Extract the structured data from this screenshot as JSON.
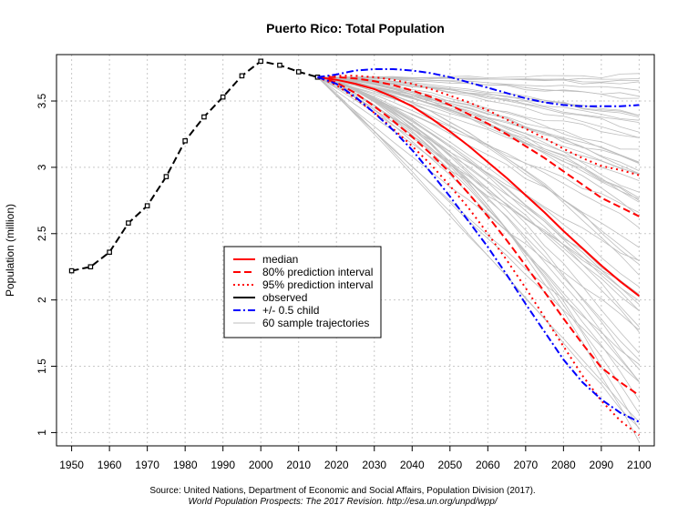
{
  "chart_data": {
    "type": "line",
    "title": "Puerto Rico: Total Population",
    "ylabel": "Population (million)",
    "xlabel": "",
    "xlim": [
      1946,
      2104
    ],
    "ylim": [
      0.9,
      3.85
    ],
    "x_ticks": [
      1950,
      1960,
      1970,
      1980,
      1990,
      2000,
      2010,
      2020,
      2030,
      2040,
      2050,
      2060,
      2070,
      2080,
      2090,
      2100
    ],
    "y_ticks": [
      1,
      1.5,
      2,
      2.5,
      3,
      3.5
    ],
    "y_tick_labels": [
      "1",
      "1.5",
      "2",
      "2.5",
      "3",
      "3.5"
    ],
    "grid": true,
    "legend_position": "center-left",
    "legend": [
      {
        "label": "median",
        "color": "#ff0000",
        "dash": "solid",
        "width": 2
      },
      {
        "label": "80% prediction interval",
        "color": "#ff0000",
        "dash": "dashed",
        "width": 2
      },
      {
        "label": "95% prediction interval",
        "color": "#ff0000",
        "dash": "dotted",
        "width": 2
      },
      {
        "label": "observed",
        "color": "#000000",
        "dash": "solid",
        "width": 2
      },
      {
        "label": "+/- 0.5 child",
        "color": "#0000ff",
        "dash": "dashdot",
        "width": 2
      },
      {
        "label": "60 sample trajectories",
        "color": "#bebebe",
        "dash": "solid",
        "width": 1
      }
    ],
    "series": [
      {
        "name": "observed",
        "color": "#000000",
        "dash": "dashed",
        "width": 2,
        "markers": true,
        "x": [
          1950,
          1955,
          1960,
          1965,
          1970,
          1975,
          1980,
          1985,
          1990,
          1995,
          2000,
          2005,
          2010,
          2015
        ],
        "y": [
          2.22,
          2.25,
          2.36,
          2.58,
          2.71,
          2.93,
          3.2,
          3.38,
          3.53,
          3.69,
          3.8,
          3.77,
          3.72,
          3.68
        ]
      },
      {
        "name": "median",
        "color": "#ff0000",
        "dash": "solid",
        "width": 2,
        "x": [
          2015,
          2020,
          2025,
          2030,
          2035,
          2040,
          2045,
          2050,
          2055,
          2060,
          2065,
          2070,
          2075,
          2080,
          2085,
          2090,
          2095,
          2100
        ],
        "y": [
          3.68,
          3.66,
          3.63,
          3.59,
          3.53,
          3.46,
          3.37,
          3.27,
          3.16,
          3.04,
          2.92,
          2.79,
          2.66,
          2.52,
          2.39,
          2.26,
          2.14,
          2.03
        ]
      },
      {
        "name": "80% upper",
        "color": "#ff0000",
        "dash": "dashed",
        "width": 2,
        "x": [
          2015,
          2020,
          2025,
          2030,
          2035,
          2040,
          2045,
          2050,
          2055,
          2060,
          2065,
          2070,
          2075,
          2080,
          2085,
          2090,
          2095,
          2100
        ],
        "y": [
          3.68,
          3.68,
          3.67,
          3.65,
          3.62,
          3.58,
          3.53,
          3.47,
          3.4,
          3.33,
          3.25,
          3.16,
          3.07,
          2.97,
          2.87,
          2.77,
          2.7,
          2.63
        ]
      },
      {
        "name": "80% lower",
        "color": "#ff0000",
        "dash": "dashed",
        "width": 2,
        "x": [
          2015,
          2020,
          2025,
          2030,
          2035,
          2040,
          2045,
          2050,
          2055,
          2060,
          2065,
          2070,
          2075,
          2080,
          2085,
          2090,
          2095,
          2100
        ],
        "y": [
          3.68,
          3.64,
          3.56,
          3.46,
          3.35,
          3.23,
          3.1,
          2.96,
          2.8,
          2.63,
          2.45,
          2.26,
          2.06,
          1.86,
          1.67,
          1.49,
          1.38,
          1.28
        ]
      },
      {
        "name": "95% upper",
        "color": "#ff0000",
        "dash": "dotted",
        "width": 2,
        "x": [
          2015,
          2020,
          2025,
          2030,
          2035,
          2040,
          2045,
          2050,
          2055,
          2060,
          2065,
          2070,
          2075,
          2080,
          2085,
          2090,
          2095,
          2100
        ],
        "y": [
          3.68,
          3.69,
          3.69,
          3.68,
          3.66,
          3.63,
          3.59,
          3.54,
          3.49,
          3.43,
          3.36,
          3.29,
          3.22,
          3.14,
          3.07,
          3.01,
          2.98,
          2.94
        ]
      },
      {
        "name": "95% lower",
        "color": "#ff0000",
        "dash": "dotted",
        "width": 2,
        "x": [
          2015,
          2020,
          2025,
          2030,
          2035,
          2040,
          2045,
          2050,
          2055,
          2060,
          2065,
          2070,
          2075,
          2080,
          2085,
          2090,
          2095,
          2100
        ],
        "y": [
          3.68,
          3.62,
          3.52,
          3.41,
          3.29,
          3.16,
          3.02,
          2.86,
          2.69,
          2.5,
          2.3,
          2.09,
          1.87,
          1.65,
          1.43,
          1.24,
          1.09,
          0.98
        ]
      },
      {
        "name": "+0.5 child",
        "color": "#0000ff",
        "dash": "dashdot",
        "width": 2,
        "x": [
          2015,
          2020,
          2025,
          2030,
          2035,
          2040,
          2045,
          2050,
          2055,
          2060,
          2065,
          2070,
          2075,
          2080,
          2085,
          2090,
          2095,
          2100
        ],
        "y": [
          3.68,
          3.7,
          3.73,
          3.74,
          3.74,
          3.73,
          3.71,
          3.68,
          3.64,
          3.6,
          3.56,
          3.52,
          3.49,
          3.47,
          3.46,
          3.46,
          3.46,
          3.47
        ]
      },
      {
        "name": "-0.5 child",
        "color": "#0000ff",
        "dash": "dashdot",
        "width": 2,
        "x": [
          2015,
          2020,
          2025,
          2030,
          2035,
          2040,
          2045,
          2050,
          2055,
          2060,
          2065,
          2070,
          2075,
          2080,
          2085,
          2090,
          2095,
          2100
        ],
        "y": [
          3.68,
          3.63,
          3.53,
          3.41,
          3.28,
          3.13,
          2.96,
          2.78,
          2.59,
          2.4,
          2.19,
          1.97,
          1.76,
          1.55,
          1.38,
          1.25,
          1.15,
          1.08
        ]
      }
    ],
    "trajectories": {
      "count": 60,
      "color": "#bebebe",
      "x": [
        2015,
        2020,
        2025,
        2030,
        2035,
        2040,
        2045,
        2050,
        2055,
        2060,
        2065,
        2070,
        2075,
        2080,
        2085,
        2090,
        2095,
        2100
      ],
      "start": 3.68,
      "end_min": 0.93,
      "end_max": 3.73
    }
  },
  "footer": {
    "source_line1": "Source: United Nations, Department of Economic and Social Affairs, Population Division (2017).",
    "source_line2": "World Population Prospects: The 2017 Revision. http://esa.un.org/unpd/wpp/"
  }
}
